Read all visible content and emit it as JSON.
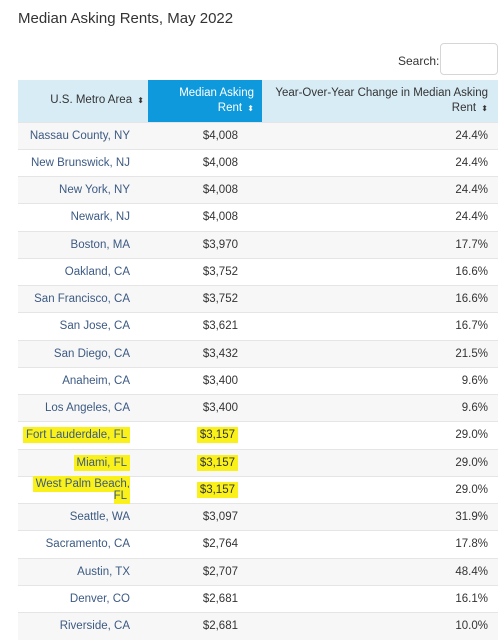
{
  "page": {
    "title": "Median Asking Rents, May 2022"
  },
  "search": {
    "label": "Search:",
    "value": ""
  },
  "table": {
    "headers": [
      "U.S. Metro Area",
      "Median Asking Rent",
      "Year-Over-Year Change in Median Asking Rent"
    ],
    "sort_glyph": "⬍",
    "rows": [
      [
        "Nassau County, NY",
        "$4,008",
        "24.4%"
      ],
      [
        "New Brunswick, NJ",
        "$4,008",
        "24.4%"
      ],
      [
        "New York, NY",
        "$4,008",
        "24.4%"
      ],
      [
        "Newark, NJ",
        "$4,008",
        "24.4%"
      ],
      [
        "Boston, MA",
        "$3,970",
        "17.7%"
      ],
      [
        "Oakland, CA",
        "$3,752",
        "16.6%"
      ],
      [
        "San Francisco, CA",
        "$3,752",
        "16.6%"
      ],
      [
        "San Jose, CA",
        "$3,621",
        "16.7%"
      ],
      [
        "San Diego, CA",
        "$3,432",
        "21.5%"
      ],
      [
        "Anaheim, CA",
        "$3,400",
        "9.6%"
      ],
      [
        "Los Angeles, CA",
        "$3,400",
        "9.6%"
      ],
      [
        "Fort Lauderdale, FL",
        "$3,157",
        "29.0%"
      ],
      [
        "Miami, FL",
        "$3,157",
        "29.0%"
      ],
      [
        "West Palm Beach, FL",
        "$3,157",
        "29.0%"
      ],
      [
        "Seattle, WA",
        "$3,097",
        "31.9%"
      ],
      [
        "Sacramento, CA",
        "$2,764",
        "17.8%"
      ],
      [
        "Austin, TX",
        "$2,707",
        "48.4%"
      ],
      [
        "Denver, CO",
        "$2,681",
        "16.1%"
      ],
      [
        "Riverside, CA",
        "$2,681",
        "10.0%"
      ]
    ],
    "highlighted_rows": [
      11,
      12,
      13
    ],
    "highlight_color": "#fbf11a",
    "active_sort_header_color": "#0d99db"
  }
}
